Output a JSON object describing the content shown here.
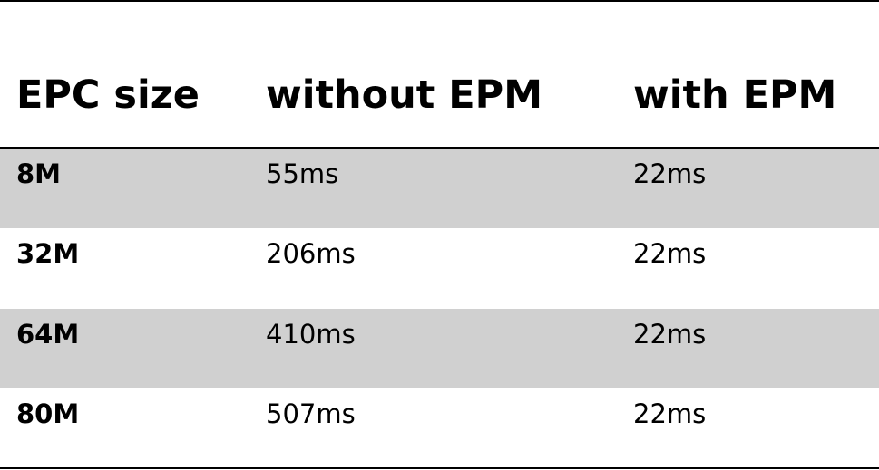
{
  "table": {
    "headers": [
      "EPC size",
      "without EPM",
      "with EPM"
    ],
    "rows": [
      {
        "epc_size": "8M",
        "without_epm": "55ms",
        "with_epm": "22ms",
        "shaded": true
      },
      {
        "epc_size": "32M",
        "without_epm": "206ms",
        "with_epm": "22ms",
        "shaded": false
      },
      {
        "epc_size": "64M",
        "without_epm": "410ms",
        "with_epm": "22ms",
        "shaded": true
      },
      {
        "epc_size": "80M",
        "without_epm": "507ms",
        "with_epm": "22ms",
        "shaded": false
      }
    ],
    "colors": {
      "shaded_row": "#d0d0d0",
      "rules": "#000000"
    }
  }
}
